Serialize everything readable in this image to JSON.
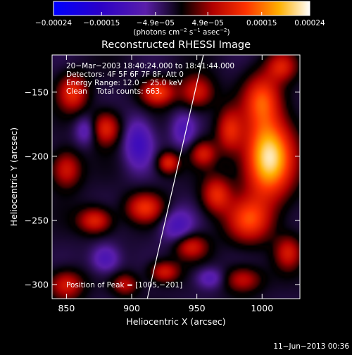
{
  "chart_data": {
    "type": "heatmap",
    "title": "Reconstructed RHESSI Image",
    "xlabel": "Heliocentric X (arcsec)",
    "ylabel": "Heliocentric Y (arcsec)",
    "xlim": [
      839,
      1029
    ],
    "ylim": [
      -311,
      -121
    ],
    "x_ticks": [
      850,
      900,
      950,
      1000
    ],
    "y_ticks": [
      -150,
      -200,
      -250,
      -300
    ],
    "x_tick_labels": [
      "850",
      "900",
      "950",
      "1000"
    ],
    "y_tick_labels": [
      "−150",
      "−200",
      "−250",
      "−300"
    ],
    "colorbar": {
      "range": [
        -0.00024,
        0.00024
      ],
      "tick_labels": [
        "−0.00024",
        "−0.00015",
        "−4.9e−05",
        "4.9e−05",
        "0.00015",
        "0.00024"
      ],
      "ticks": [
        -0.00024,
        -0.00015,
        -4.9e-05,
        4.9e-05,
        0.00015,
        0.00024
      ],
      "unit_parts": [
        "(photons cm",
        "−2",
        " s",
        "−1",
        " asec",
        "−2",
        ")"
      ]
    },
    "annotations": [
      "20−Mar−2003 18:40:24.000 to 18:41:44.000",
      "Detectors: 4F 5F 6F 7F 8F, Att 0",
      "Energy Range: 12.0 − 25.0 keV",
      "Clean    Total counts: 663."
    ],
    "peak_label": "Position of Peak = [1005,−201]",
    "peak": [
      1005,
      -201
    ],
    "limb_line": [
      [
        912,
        -311
      ],
      [
        955,
        -121
      ]
    ],
    "blobs": [
      {
        "x": 1005,
        "y": -201,
        "sx": 13,
        "sy": 22,
        "a": 1.0
      },
      {
        "x": 1000,
        "y": -155,
        "sx": 10,
        "sy": 14,
        "a": 0.55
      },
      {
        "x": 990,
        "y": -250,
        "sx": 12,
        "sy": 12,
        "a": 0.55
      },
      {
        "x": 975,
        "y": -180,
        "sx": 7,
        "sy": 12,
        "a": 0.45
      },
      {
        "x": 965,
        "y": -230,
        "sx": 8,
        "sy": 10,
        "a": 0.5
      },
      {
        "x": 950,
        "y": -150,
        "sx": 9,
        "sy": 9,
        "a": 0.45
      },
      {
        "x": 955,
        "y": -198,
        "sx": 7,
        "sy": 7,
        "a": 0.4
      },
      {
        "x": 945,
        "y": -270,
        "sx": 9,
        "sy": 7,
        "a": 0.45
      },
      {
        "x": 985,
        "y": -296,
        "sx": 10,
        "sy": 7,
        "a": 0.4
      },
      {
        "x": 1020,
        "y": -275,
        "sx": 7,
        "sy": 9,
        "a": 0.4
      },
      {
        "x": 1015,
        "y": -130,
        "sx": 8,
        "sy": 8,
        "a": 0.4
      },
      {
        "x": 920,
        "y": -150,
        "sx": 9,
        "sy": 7,
        "a": 0.55
      },
      {
        "x": 928,
        "y": -205,
        "sx": 6,
        "sy": 6,
        "a": 0.5
      },
      {
        "x": 910,
        "y": -240,
        "sx": 10,
        "sy": 8,
        "a": 0.5
      },
      {
        "x": 925,
        "y": -290,
        "sx": 8,
        "sy": 6,
        "a": 0.45
      },
      {
        "x": 880,
        "y": -178,
        "sx": 8,
        "sy": 9,
        "a": 0.5
      },
      {
        "x": 855,
        "y": -150,
        "sx": 8,
        "sy": 10,
        "a": 0.5
      },
      {
        "x": 850,
        "y": -210,
        "sx": 8,
        "sy": 10,
        "a": 0.45
      },
      {
        "x": 872,
        "y": -250,
        "sx": 9,
        "sy": 7,
        "a": 0.5
      },
      {
        "x": 850,
        "y": -300,
        "sx": 9,
        "sy": 8,
        "a": 0.45
      },
      {
        "x": 895,
        "y": -300,
        "sx": 7,
        "sy": 6,
        "a": 0.35
      },
      {
        "x": 905,
        "y": -190,
        "sx": 8,
        "sy": 14,
        "a": -0.4
      },
      {
        "x": 865,
        "y": -180,
        "sx": 6,
        "sy": 8,
        "a": -0.3
      },
      {
        "x": 880,
        "y": -280,
        "sx": 8,
        "sy": 8,
        "a": -0.35
      },
      {
        "x": 935,
        "y": -255,
        "sx": 9,
        "sy": 10,
        "a": -0.35
      },
      {
        "x": 940,
        "y": -180,
        "sx": 7,
        "sy": 10,
        "a": -0.3
      },
      {
        "x": 960,
        "y": -295,
        "sx": 8,
        "sy": 6,
        "a": -0.3
      }
    ]
  },
  "footer": {
    "timestamp": "11−Jun−2013 00:36"
  }
}
